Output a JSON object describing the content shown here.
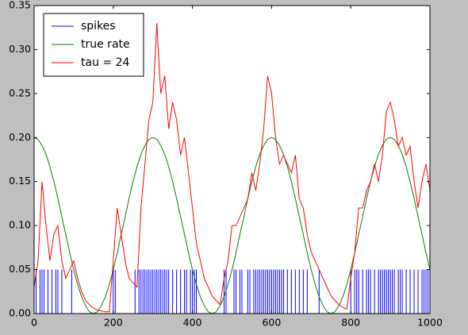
{
  "chart_data": {
    "type": "line",
    "xlim": [
      0,
      1000
    ],
    "xticks": [
      0,
      200,
      400,
      600,
      800,
      1000
    ],
    "ylim": [
      0,
      0.35
    ],
    "yticks": [
      {
        "value": 0,
        "label": "0.00"
      },
      {
        "value": 0.05,
        "label": "0.05"
      },
      {
        "value": 0.1,
        "label": "0.10"
      },
      {
        "value": 0.15,
        "label": "0.15"
      },
      {
        "value": 0.2,
        "label": "0.20"
      },
      {
        "value": 0.25,
        "label": "0.25"
      },
      {
        "value": 0.3,
        "label": "0.30"
      },
      {
        "value": 0.35,
        "label": "0.35"
      }
    ],
    "legend": "upper left",
    "x": [
      0,
      10,
      20,
      30,
      40,
      50,
      60,
      70,
      80,
      90,
      100,
      110,
      120,
      130,
      140,
      150,
      160,
      170,
      180,
      190,
      200,
      210,
      220,
      230,
      240,
      250,
      260,
      270,
      280,
      290,
      300,
      310,
      320,
      330,
      340,
      350,
      360,
      370,
      380,
      390,
      400,
      410,
      420,
      430,
      440,
      450,
      460,
      470,
      480,
      490,
      500,
      510,
      520,
      530,
      540,
      550,
      560,
      570,
      580,
      590,
      600,
      610,
      620,
      630,
      640,
      650,
      660,
      670,
      680,
      690,
      700,
      710,
      720,
      730,
      740,
      750,
      760,
      770,
      780,
      790,
      800,
      810,
      820,
      830,
      840,
      850,
      860,
      870,
      880,
      890,
      900,
      910,
      920,
      930,
      940,
      950,
      960,
      970,
      980,
      990,
      1000
    ],
    "series": [
      {
        "name": "spikes",
        "color": "#0000ff",
        "kind": "spikes",
        "x": [
          5,
          15,
          20,
          25,
          35,
          45,
          55,
          60,
          70,
          95,
          200,
          205,
          255,
          265,
          270,
          275,
          280,
          285,
          290,
          295,
          300,
          305,
          310,
          315,
          320,
          325,
          330,
          335,
          340,
          350,
          360,
          370,
          380,
          385,
          395,
          400,
          405,
          410,
          480,
          485,
          505,
          510,
          520,
          525,
          540,
          545,
          555,
          560,
          565,
          570,
          575,
          580,
          585,
          590,
          595,
          600,
          605,
          610,
          615,
          620,
          625,
          630,
          640,
          650,
          660,
          670,
          680,
          690,
          720,
          800,
          810,
          815,
          820,
          830,
          840,
          845,
          850,
          860,
          870,
          875,
          880,
          885,
          890,
          895,
          900,
          905,
          910,
          920,
          925,
          930,
          940,
          950,
          960,
          970,
          980,
          985,
          990,
          995
        ],
        "values": [
          0.05,
          0.05,
          0.05,
          0.05,
          0.05,
          0.05,
          0.05,
          0.05,
          0.05,
          0.05,
          0.05,
          0.05,
          0.05,
          0.05,
          0.05,
          0.05,
          0.05,
          0.05,
          0.05,
          0.05,
          0.05,
          0.05,
          0.05,
          0.05,
          0.05,
          0.05,
          0.05,
          0.05,
          0.05,
          0.05,
          0.05,
          0.05,
          0.05,
          0.05,
          0.05,
          0.05,
          0.05,
          0.05,
          0.05,
          0.05,
          0.05,
          0.05,
          0.05,
          0.05,
          0.05,
          0.05,
          0.05,
          0.05,
          0.05,
          0.05,
          0.05,
          0.05,
          0.05,
          0.05,
          0.05,
          0.05,
          0.05,
          0.05,
          0.05,
          0.05,
          0.05,
          0.05,
          0.05,
          0.05,
          0.05,
          0.05,
          0.05,
          0.05,
          0.05,
          0.05,
          0.05,
          0.05,
          0.05,
          0.05,
          0.05,
          0.05,
          0.05,
          0.05,
          0.05,
          0.05,
          0.05,
          0.05,
          0.05,
          0.05,
          0.05,
          0.05,
          0.05,
          0.05,
          0.05,
          0.05,
          0.05,
          0.05,
          0.05,
          0.05,
          0.05,
          0.05,
          0.05,
          0.05
        ]
      },
      {
        "name": "true rate",
        "color": "#008000",
        "values": [
          0.2,
          0.198,
          0.191,
          0.181,
          0.167,
          0.15,
          0.131,
          0.11,
          0.09,
          0.069,
          0.05,
          0.033,
          0.019,
          0.009,
          0.002,
          0,
          0.002,
          0.009,
          0.019,
          0.033,
          0.05,
          0.069,
          0.09,
          0.11,
          0.131,
          0.15,
          0.167,
          0.181,
          0.191,
          0.198,
          0.2,
          0.198,
          0.191,
          0.181,
          0.167,
          0.15,
          0.131,
          0.11,
          0.09,
          0.069,
          0.05,
          0.033,
          0.019,
          0.009,
          0.002,
          0,
          0.002,
          0.009,
          0.019,
          0.033,
          0.05,
          0.069,
          0.09,
          0.11,
          0.131,
          0.15,
          0.167,
          0.181,
          0.191,
          0.198,
          0.2,
          0.198,
          0.191,
          0.181,
          0.167,
          0.15,
          0.131,
          0.11,
          0.09,
          0.069,
          0.05,
          0.033,
          0.019,
          0.009,
          0.002,
          0,
          0.002,
          0.009,
          0.019,
          0.033,
          0.05,
          0.069,
          0.09,
          0.11,
          0.131,
          0.15,
          0.167,
          0.181,
          0.191,
          0.198,
          0.2,
          0.198,
          0.191,
          0.181,
          0.167,
          0.15,
          0.131,
          0.11,
          0.09,
          0.069,
          0.05
        ]
      },
      {
        "name": "tau = 24",
        "color": "#ff0000",
        "values": [
          0.03,
          0.06,
          0.15,
          0.1,
          0.06,
          0.09,
          0.1,
          0.06,
          0.04,
          0.05,
          0.06,
          0.04,
          0.025,
          0.015,
          0.01,
          0.006,
          0.004,
          0.003,
          0.002,
          0.002,
          0.06,
          0.12,
          0.09,
          0.06,
          0.04,
          0.035,
          0.03,
          0.12,
          0.17,
          0.22,
          0.24,
          0.33,
          0.25,
          0.27,
          0.21,
          0.24,
          0.22,
          0.18,
          0.2,
          0.16,
          0.12,
          0.08,
          0.06,
          0.04,
          0.03,
          0.02,
          0.015,
          0.01,
          0.04,
          0.06,
          0.1,
          0.1,
          0.11,
          0.12,
          0.13,
          0.16,
          0.14,
          0.17,
          0.21,
          0.27,
          0.25,
          0.2,
          0.17,
          0.18,
          0.17,
          0.16,
          0.18,
          0.13,
          0.12,
          0.09,
          0.07,
          0.06,
          0.05,
          0.04,
          0.03,
          0.02,
          0.015,
          0.01,
          0.007,
          0.005,
          0.04,
          0.07,
          0.12,
          0.12,
          0.14,
          0.15,
          0.17,
          0.15,
          0.18,
          0.23,
          0.24,
          0.22,
          0.19,
          0.2,
          0.18,
          0.19,
          0.15,
          0.12,
          0.15,
          0.17,
          0.14
        ]
      }
    ]
  }
}
